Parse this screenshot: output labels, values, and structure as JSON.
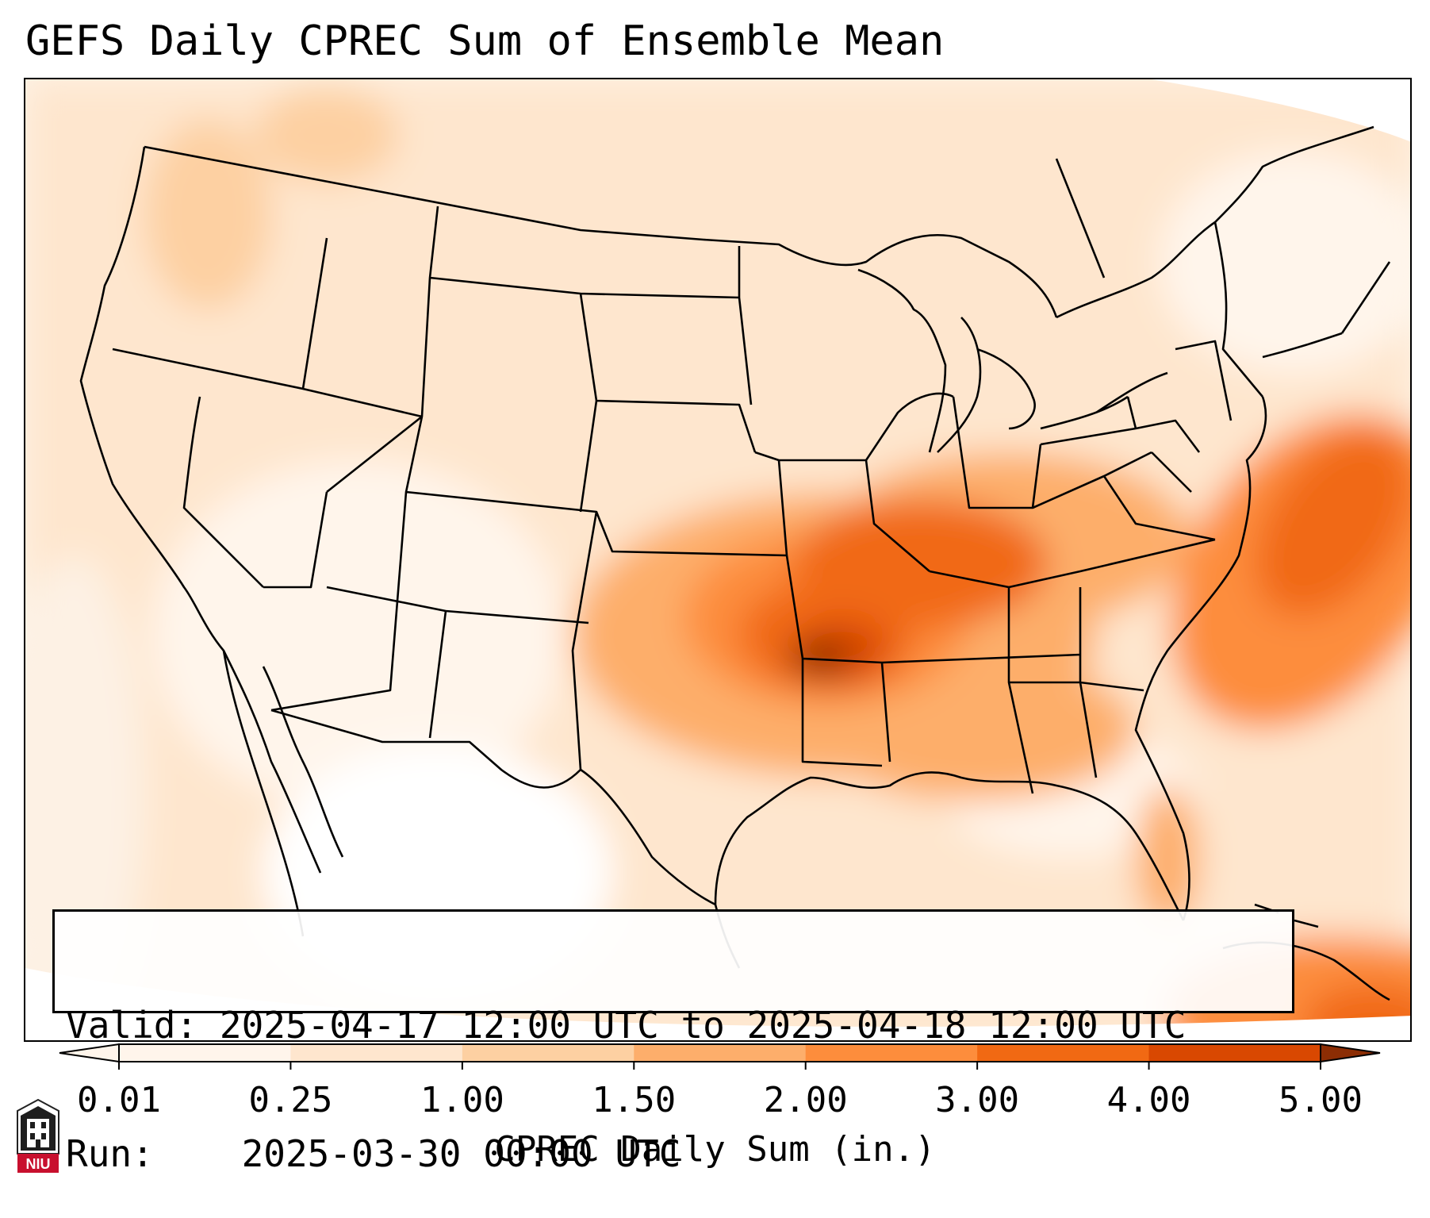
{
  "title": "GEFS Daily CPREC Sum of Ensemble Mean",
  "info": {
    "valid_label": "Valid:",
    "valid_value": "2025-04-17 12:00 UTC to 2025-04-18 12:00 UTC",
    "run_label": "Run:",
    "run_value": "2025-03-30 00:00 UTC"
  },
  "colorbar": {
    "label": "CPREC Daily Sum (in.)",
    "ticks": [
      "0.01",
      "0.25",
      "1.00",
      "1.50",
      "2.00",
      "3.00",
      "4.00",
      "5.00"
    ],
    "colors": [
      "#fff5eb",
      "#fee6ce",
      "#fdd0a2",
      "#fdae6b",
      "#fd8d3c",
      "#f16913",
      "#d94801",
      "#8c2d04"
    ],
    "extend": "both"
  },
  "map": {
    "background_color": "#fdf3e7",
    "border_color": "#000000",
    "palette": [
      "#fff5eb",
      "#fee6ce",
      "#fdd0a2",
      "#fdae6b",
      "#fd8d3c",
      "#f16913",
      "#d94801",
      "#8c2d04"
    ]
  },
  "logo": {
    "text": "NIU",
    "icon": "niu-tower-icon",
    "color": "#c8102e"
  }
}
